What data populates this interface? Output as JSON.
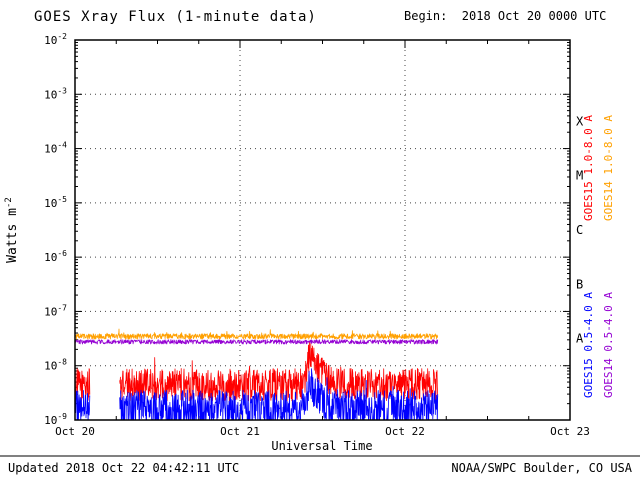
{
  "header": {
    "title": "GOES Xray Flux (1-minute data)",
    "begin": "Begin:  2018 Oct 20 0000 UTC"
  },
  "footer": {
    "updated": "Updated 2018 Oct 22 04:42:11 UTC",
    "source": "NOAA/SWPC Boulder, CO USA"
  },
  "chart_data": {
    "type": "line",
    "title": "GOES Xray Flux (1-minute data)",
    "xlabel": "Universal Time",
    "ylabel": "Watts m^-2",
    "ylabel_base": "Watts m",
    "ylabel_exp": "-2",
    "begin_time": "2018 Oct 20 0000 UTC",
    "x_ticks": [
      "Oct 20",
      "Oct 21",
      "Oct 22",
      "Oct 23"
    ],
    "x_tick_positions_days": [
      0,
      1,
      2,
      3
    ],
    "x_range_days": [
      0,
      3
    ],
    "y_log_range": [
      -9,
      -2
    ],
    "y_tick_exponents": [
      -2,
      -3,
      -4,
      -5,
      -6,
      -7,
      -8,
      -9
    ],
    "grid": true,
    "data_end_day": 2.2,
    "flare_classes": [
      {
        "label": "X",
        "between_exponents": [
          -4,
          -3
        ]
      },
      {
        "label": "M",
        "between_exponents": [
          -5,
          -4
        ]
      },
      {
        "label": "C",
        "between_exponents": [
          -6,
          -5
        ]
      },
      {
        "label": "B",
        "between_exponents": [
          -7,
          -6
        ]
      },
      {
        "label": "A",
        "between_exponents": [
          -8,
          -7
        ]
      }
    ],
    "series": [
      {
        "name": "GOES15 1.0-8.0 A",
        "color": "#FF0000",
        "base_log10_flux": -8.35,
        "noise_log10": 0.3,
        "approx_flux_w_m2": 4.5e-09,
        "start_day": 0,
        "end_day": 2.2,
        "gaps_days": [
          [
            0.09,
            0.27
          ]
        ],
        "event": {
          "peak_day": 1.43,
          "rise_day": 0.02,
          "decay_day": 0.06,
          "amp_log10": 0.6
        },
        "spike_prob": 0.012,
        "spike_log10": 0.3
      },
      {
        "name": "GOES15 0.5-4.0 A",
        "color": "#0000FF",
        "base_log10_flux": -8.8,
        "noise_log10": 0.35,
        "approx_flux_w_m2": 1.6e-09,
        "start_day": 0,
        "end_day": 2.2,
        "gaps_days": [
          [
            0.09,
            0.27
          ]
        ],
        "event": {
          "peak_day": 1.43,
          "rise_day": 0.02,
          "decay_day": 0.06,
          "amp_log10": 0.5
        },
        "spike_prob": 0.01,
        "spike_log10": 0.25
      },
      {
        "name": "GOES14 0.5-4.0 A",
        "color": "#9400D3",
        "base_log10_flux": -7.56,
        "noise_log10": 0.04,
        "approx_flux_w_m2": 2.8e-08,
        "start_day": 0,
        "end_day": 2.2,
        "gaps_days": [],
        "spike_prob": 0,
        "spike_log10": 0
      },
      {
        "name": "GOES14 1.0-8.0 A",
        "color": "#FFA000",
        "base_log10_flux": -7.46,
        "noise_log10": 0.05,
        "approx_flux_w_m2": 3.5e-08,
        "start_day": 0,
        "end_day": 2.2,
        "gaps_days": [],
        "spike_prob": 0.02,
        "spike_log10": 0.12
      }
    ],
    "right_labels": [
      {
        "text": "GOES15 1.0-8.0 A",
        "color": "#FF0000",
        "col": 0,
        "row": 0
      },
      {
        "text": "GOES14 1.0-8.0 A",
        "color": "#FFA000",
        "col": 1,
        "row": 0
      },
      {
        "text": "GOES15 0.5-4.0 A",
        "color": "#0000FF",
        "col": 0,
        "row": 1
      },
      {
        "text": "GOES14 0.5-4.0 A",
        "color": "#9400D3",
        "col": 1,
        "row": 1
      }
    ]
  }
}
